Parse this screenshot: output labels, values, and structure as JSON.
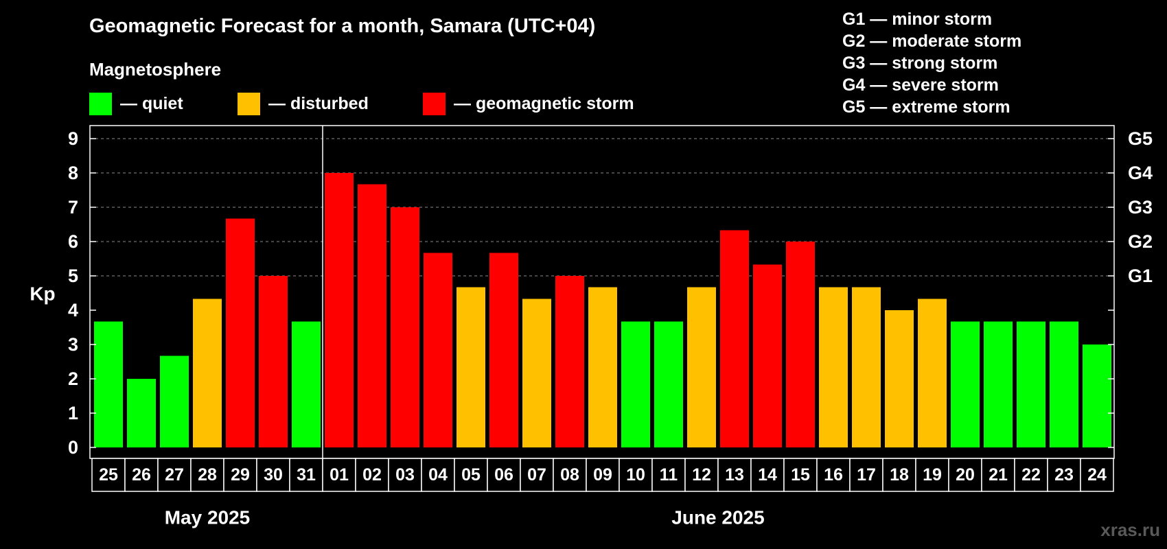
{
  "title": "Geomagnetic Forecast for a month, Samara (UTC+04)",
  "subtitle": "Magnetosphere",
  "legend": [
    {
      "label": "— quiet",
      "color": "#00ff00"
    },
    {
      "label": "— disturbed",
      "color": "#ffc000"
    },
    {
      "label": "— geomagnetic storm",
      "color": "#ff0000"
    }
  ],
  "storm_scale": [
    "G1 — minor storm",
    "G2 — moderate storm",
    "G3 — strong storm",
    "G4 — severe storm",
    "G5 — extreme storm"
  ],
  "watermark": "xras.ru",
  "colors": {
    "quiet": "#00ff00",
    "disturbed": "#ffc000",
    "storm": "#ff0000"
  },
  "chart_data": {
    "type": "bar",
    "ylabel": "Kp",
    "ylim": [
      0,
      9
    ],
    "yticks": [
      0,
      1,
      2,
      3,
      4,
      5,
      6,
      7,
      8,
      9
    ],
    "right_axis": [
      {
        "kp": 5,
        "label": "G1"
      },
      {
        "kp": 6,
        "label": "G2"
      },
      {
        "kp": 7,
        "label": "G3"
      },
      {
        "kp": 8,
        "label": "G4"
      },
      {
        "kp": 9,
        "label": "G5"
      }
    ],
    "grid": "horizontal dashed at Kp 5-9",
    "categories": [
      "25",
      "26",
      "27",
      "28",
      "29",
      "30",
      "31",
      "01",
      "02",
      "03",
      "04",
      "05",
      "06",
      "07",
      "08",
      "09",
      "10",
      "11",
      "12",
      "13",
      "14",
      "15",
      "16",
      "17",
      "18",
      "19",
      "20",
      "21",
      "22",
      "23",
      "24"
    ],
    "values": [
      3.67,
      2.0,
      2.67,
      4.33,
      6.67,
      5.0,
      3.67,
      8.0,
      7.67,
      7.0,
      5.67,
      4.67,
      5.67,
      4.33,
      5.0,
      4.67,
      3.67,
      3.67,
      4.67,
      6.33,
      5.33,
      6.0,
      4.67,
      4.67,
      4.0,
      4.33,
      3.67,
      3.67,
      3.67,
      3.67,
      3.0
    ],
    "status": [
      "quiet",
      "quiet",
      "quiet",
      "disturbed",
      "storm",
      "storm",
      "quiet",
      "storm",
      "storm",
      "storm",
      "storm",
      "disturbed",
      "storm",
      "disturbed",
      "storm",
      "disturbed",
      "quiet",
      "quiet",
      "disturbed",
      "storm",
      "storm",
      "storm",
      "disturbed",
      "disturbed",
      "disturbed",
      "disturbed",
      "quiet",
      "quiet",
      "quiet",
      "quiet",
      "quiet"
    ],
    "months": [
      {
        "label": "May 2025",
        "first_index": 0,
        "last_index": 6
      },
      {
        "label": "June 2025",
        "first_index": 7,
        "last_index": 30
      }
    ]
  }
}
